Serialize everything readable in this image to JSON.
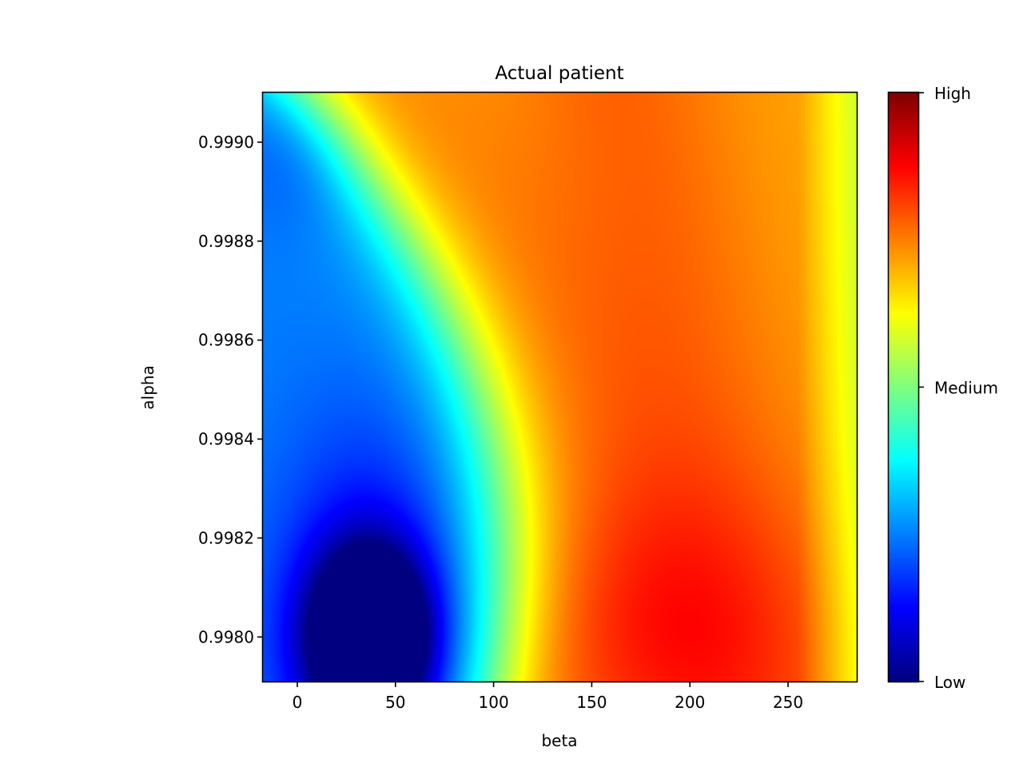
{
  "chart_data": {
    "type": "heatmap",
    "title": "Actual patient",
    "xlabel": "beta",
    "ylabel": "alpha",
    "xlim": [
      -17.5,
      285
    ],
    "ylim": [
      0.99791,
      0.9991
    ],
    "x_ticks": [
      0,
      50,
      100,
      150,
      200,
      250
    ],
    "x_tick_labels": [
      "0",
      "50",
      "100",
      "150",
      "200",
      "250"
    ],
    "y_ticks": [
      0.998,
      0.9982,
      0.9984,
      0.9986,
      0.9988,
      0.999
    ],
    "y_tick_labels": [
      "0.9980",
      "0.9982",
      "0.9984",
      "0.9986",
      "0.9988",
      "0.9990"
    ],
    "colormap": "jet",
    "colorbar": {
      "ticks": [
        0,
        0.5,
        1
      ],
      "tick_labels": [
        "Low",
        "Medium",
        "High"
      ]
    },
    "features": [
      {
        "kind": "minimum",
        "x": 37,
        "y": 0.998,
        "level": 0.0
      },
      {
        "kind": "maximum",
        "x": 190,
        "y": 0.998,
        "level": 0.83
      },
      {
        "kind": "local",
        "x": 145,
        "y": 0.999,
        "level": 0.76
      },
      {
        "kind": "local",
        "x": 0,
        "y": 0.999,
        "level": 0.45
      }
    ],
    "grid": false
  }
}
